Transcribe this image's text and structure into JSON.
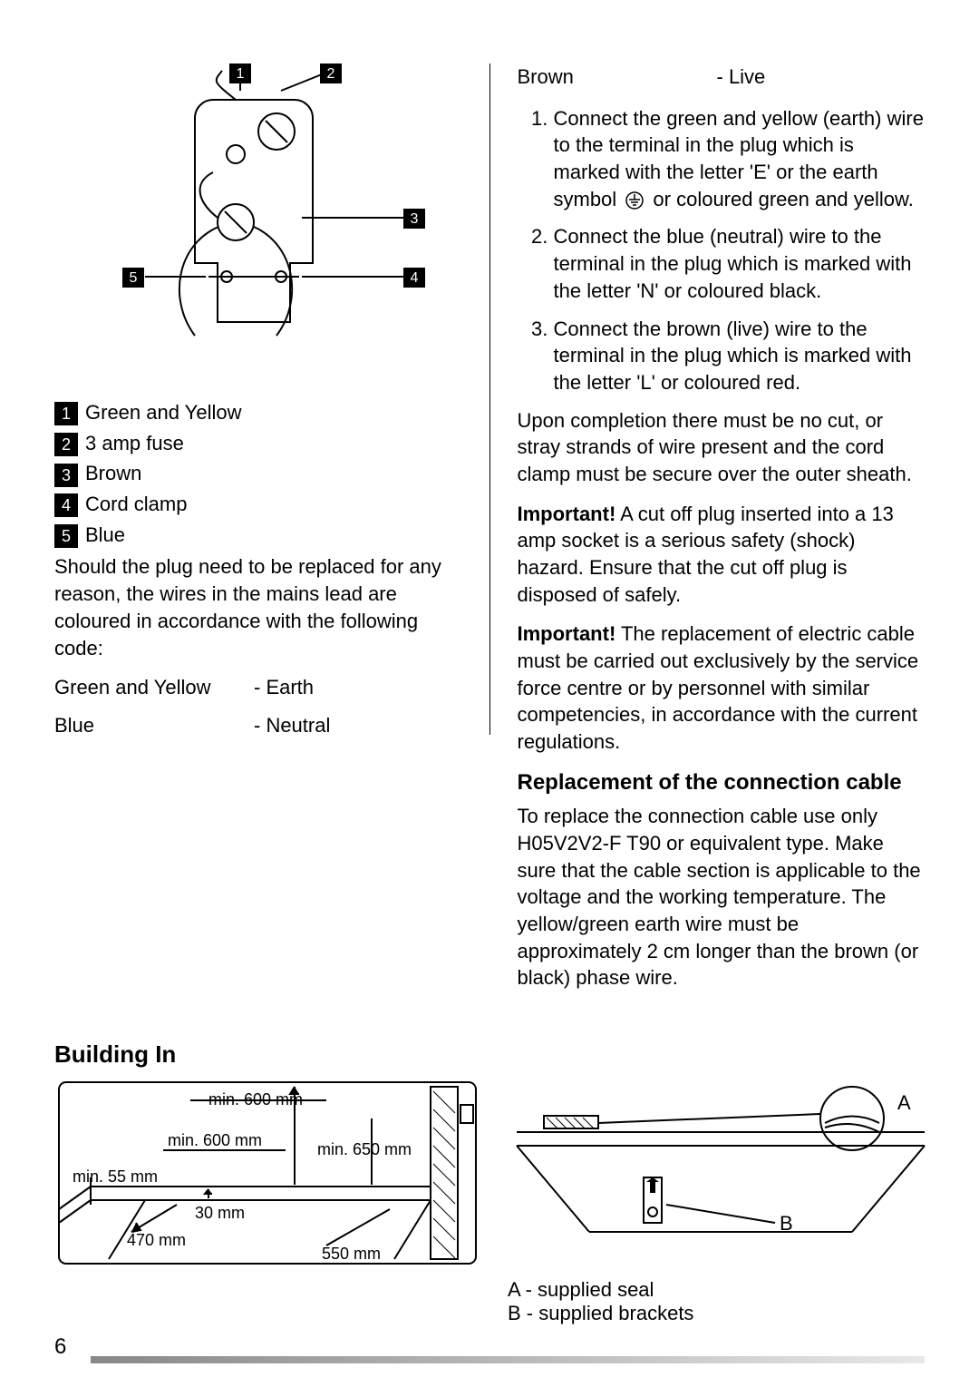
{
  "plug_diagram": {
    "callouts": [
      "1",
      "2",
      "3",
      "4",
      "5"
    ],
    "callout_bg": "#000000",
    "callout_fg": "#ffffff",
    "stroke": "#000000",
    "stroke_width": 2
  },
  "legend": [
    {
      "n": "1",
      "label": "Green and Yellow"
    },
    {
      "n": "2",
      "label": "3 amp fuse"
    },
    {
      "n": "3",
      "label": "Brown"
    },
    {
      "n": "4",
      "label": "Cord clamp"
    },
    {
      "n": "5",
      "label": "Blue"
    }
  ],
  "left_para": "Should the plug need to be replaced for any reason, the wires in the mains lead are coloured in accordance with the following code:",
  "wire_codes_left": [
    {
      "color": "Green and Yellow",
      "desig": "- Earth"
    },
    {
      "color": "Blue",
      "desig": "- Neutral"
    }
  ],
  "wire_codes_right_top": {
    "color": "Brown",
    "desig": "- Live"
  },
  "steps": [
    "Connect the green and yellow (earth) wire to the terminal in the plug which is marked with the letter 'E' or the earth symbol {EARTH} or coloured green and yellow.",
    "Connect the blue (neutral) wire to the terminal in the plug which is marked with the letter 'N' or coloured black.",
    "Connect the brown (live) wire to the terminal in the plug which is marked with the letter 'L' or coloured red."
  ],
  "completion_para": "Upon completion there must be no cut, or stray strands of wire present and the cord clamp must be secure over the outer sheath.",
  "important1_label": "Important!",
  "important1_text": " A cut off plug inserted into a 13 amp socket is a serious safety (shock) hazard. Ensure that the cut off plug is disposed of safely.",
  "important2_label": "Important!",
  "important2_text": " The replacement of electric cable must be carried out exclusively by the service force centre or by personnel with similar competencies, in accordance with the current regulations.",
  "replacement_head": "Replacement of the connection cable",
  "replacement_para": "To replace the connection cable use only H05V2V2-F T90 or equivalent type. Make sure that the cable section is applicable to the voltage and the working temperature. The yellow/green earth wire must be approximately 2 cm longer than the brown (or black) phase wire.",
  "building_in_head": "Building In",
  "dims_diagram": {
    "labels": {
      "top": "min. 600 mm",
      "left_upper": "min. 600 mm",
      "right_upper": "min. 650 mm",
      "left": "min. 55 mm",
      "mid": "30 mm",
      "bottom_left": "470 mm",
      "bottom_right": "550 mm"
    },
    "stroke": "#000000",
    "label_fontsize": 18
  },
  "ab_diagram": {
    "A": "A",
    "B": "B",
    "stroke": "#000000"
  },
  "ab_legend": [
    "A - supplied seal",
    "B - supplied brackets"
  ],
  "page_number": "6",
  "footer_gradient_from": "#888888",
  "footer_gradient_to": "#e8e8e8"
}
